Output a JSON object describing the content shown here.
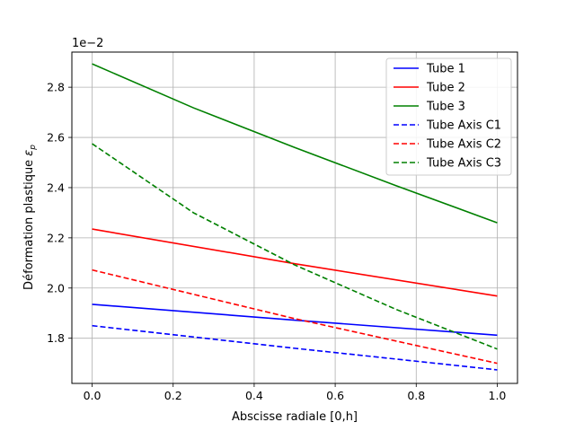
{
  "chart_data": {
    "type": "line",
    "xlabel": "Abscisse radiale [0,h]",
    "ylabel": "Déformation plastique",
    "ylabel_symbol": "ε",
    "ylabel_subscript": "p",
    "y_multiplier": "1e−2",
    "xlim": [
      -0.05,
      1.05
    ],
    "ylim": [
      1.62,
      2.94
    ],
    "x_ticks": [
      0.0,
      0.2,
      0.4,
      0.6,
      0.8,
      1.0
    ],
    "x_tick_labels": [
      "0.0",
      "0.2",
      "0.4",
      "0.6",
      "0.8",
      "1.0"
    ],
    "y_ticks": [
      1.8,
      2.0,
      2.2,
      2.4,
      2.6,
      2.8
    ],
    "y_tick_labels": [
      "1.8",
      "2.0",
      "2.2",
      "2.4",
      "2.6",
      "2.8"
    ],
    "grid": true,
    "legend_position": "top-right",
    "series": [
      {
        "name": "Tube 1",
        "color": "#0000ff",
        "dash": "solid",
        "x": [
          0.0,
          0.5,
          1.0
        ],
        "values": [
          1.935,
          1.872,
          1.812
        ]
      },
      {
        "name": "Tube 2",
        "color": "#ff0000",
        "dash": "solid",
        "x": [
          0.0,
          0.5,
          1.0
        ],
        "values": [
          2.235,
          2.097,
          1.968
        ]
      },
      {
        "name": "Tube 3",
        "color": "#008000",
        "dash": "solid",
        "x": [
          0.0,
          0.25,
          0.5,
          0.75,
          1.0
        ],
        "values": [
          2.893,
          2.718,
          2.56,
          2.408,
          2.26
        ]
      },
      {
        "name": "Tube Axis C1",
        "color": "#0000ff",
        "dash": "dashed",
        "x": [
          0.0,
          0.5,
          1.0
        ],
        "values": [
          1.85,
          1.76,
          1.674
        ]
      },
      {
        "name": "Tube Axis C2",
        "color": "#ff0000",
        "dash": "dashed",
        "x": [
          0.0,
          0.5,
          1.0
        ],
        "values": [
          2.072,
          1.878,
          1.7
        ]
      },
      {
        "name": "Tube Axis C3",
        "color": "#008000",
        "dash": "dashed",
        "x": [
          0.0,
          0.25,
          0.5,
          0.75,
          1.0
        ],
        "values": [
          2.575,
          2.3,
          2.092,
          1.915,
          1.757
        ]
      }
    ]
  }
}
